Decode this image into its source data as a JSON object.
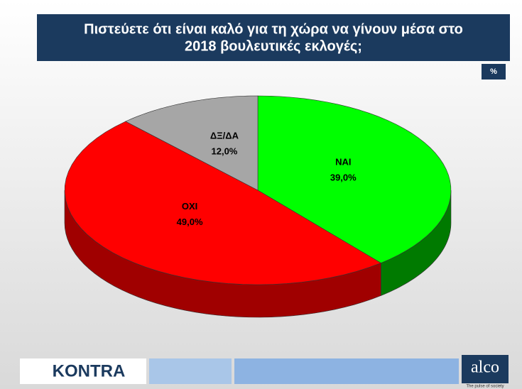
{
  "chart_data": {
    "type": "pie3d",
    "title": [
      "Πιστεύετε ότι είναι καλό για τη χώρα να γίνουν μέσα στο",
      "2018 βουλευτικές εκλογές;"
    ],
    "unit_badge": "%",
    "categories": [
      "ΝΑΙ",
      "ΟΧΙ",
      "ΔΞ/ΔΑ"
    ],
    "values": [
      39,
      49,
      12
    ],
    "value_labels": [
      "39,0%",
      "49,0%",
      "12,0%"
    ],
    "colors": [
      "#00ff00",
      "#ff0000",
      "#a6a6a6"
    ],
    "side_colors": [
      "#007a00",
      "#a00000",
      "#6e6e6e"
    ]
  },
  "footer": {
    "left_logo": "KONTRA",
    "right_logo": "alco",
    "tagline": "The pulse of society"
  }
}
